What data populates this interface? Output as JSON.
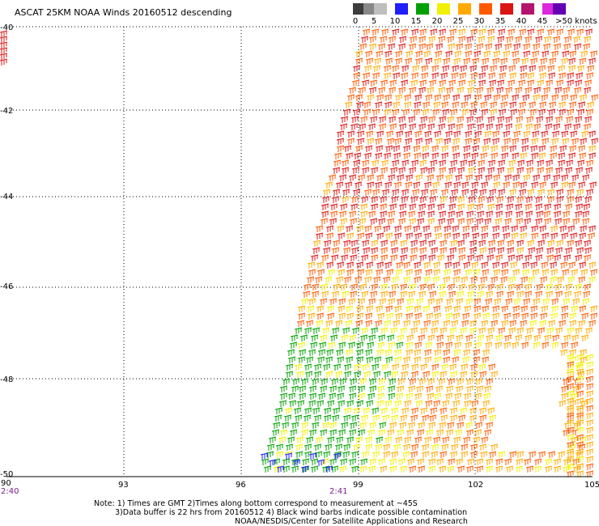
{
  "title": "ASCAT 25KM NOAA Winds 20160512 descending",
  "legend": {
    "labels": [
      "0",
      "5",
      "10",
      "15",
      "20",
      "25",
      "30",
      "35",
      "40",
      "45",
      ">50 knots"
    ],
    "colors": [
      "#3c3c3c",
      "#888888",
      "#bebebe",
      "#1e1eff",
      "#00a000",
      "#f0f000",
      "#ffaa00",
      "#ff5a00",
      "#dc1414",
      "#b4146e",
      "#dc28dc",
      "#6400b4"
    ]
  },
  "axes": {
    "lat_labels": [
      "-40",
      "-42",
      "-44",
      "-46",
      "-48",
      "-50"
    ],
    "lon_labels": [
      "90",
      "93",
      "96",
      "99",
      "102",
      "105"
    ]
  },
  "time_labels": [
    "2:40",
    "2:41"
  ],
  "notes": [
    "Note: 1) Times are GMT 2)Times along bottom correspond to measurement at ~45S",
    "3)Data buffer is 22 hrs from 20160512 4) Black wind barbs indicate possible contamination",
    "NOAA/NESDIS/Center for Satellite Applications and Research"
  ]
}
